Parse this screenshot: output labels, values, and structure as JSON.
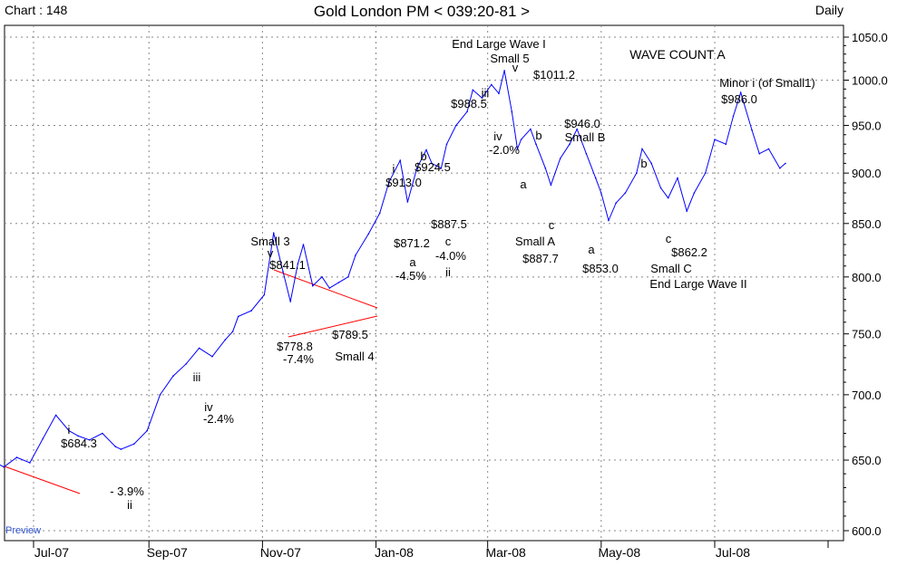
{
  "header": {
    "chart_label": "Chart : 148",
    "title": "Gold London PM < 039:20-81 >",
    "period": "Daily"
  },
  "watermark": "Preview",
  "wave_count_label": "WAVE COUNT A",
  "colors": {
    "price_line": "#0000ff",
    "trend_line": "#ff0000",
    "grid": "#888888",
    "text": "#000000",
    "watermark": "#3355cc"
  },
  "chart_data": {
    "type": "line",
    "title": "Gold London PM < 039:20-81 >",
    "xlabel": "",
    "ylabel": "",
    "ylim": [
      590,
      1060
    ],
    "y_scale": "log",
    "grid": true,
    "x_ticks": [
      "Jul-07",
      "Sep-07",
      "Nov-07",
      "Jan-08",
      "Mar-08",
      "May-08",
      "Jul-08"
    ],
    "y_ticks": [
      "600.0",
      "650.0",
      "700.0",
      "750.0",
      "800.0",
      "850.0",
      "900.0",
      "950.0",
      "1000.0",
      "1050.0"
    ],
    "series": [
      {
        "x": [
          "2007-06-01",
          "2007-06-08",
          "2007-06-15",
          "2007-06-22",
          "2007-06-29",
          "2007-07-06",
          "2007-07-13",
          "2007-07-20",
          "2007-07-25",
          "2007-07-31",
          "2007-08-07",
          "2007-08-14",
          "2007-08-17",
          "2007-08-24",
          "2007-08-31",
          "2007-09-07",
          "2007-09-14",
          "2007-09-21",
          "2007-09-28",
          "2007-10-05",
          "2007-10-12",
          "2007-10-16",
          "2007-10-19",
          "2007-10-26",
          "2007-11-02",
          "2007-11-07",
          "2007-11-12",
          "2007-11-16",
          "2007-11-20",
          "2007-11-23",
          "2007-11-28",
          "2007-12-03",
          "2007-12-07",
          "2007-12-12",
          "2007-12-17",
          "2007-12-21",
          "2007-12-28",
          "2008-01-03",
          "2008-01-08",
          "2008-01-14",
          "2008-01-18",
          "2008-01-23",
          "2008-01-28",
          "2008-01-31",
          "2008-02-05",
          "2008-02-08",
          "2008-02-13",
          "2008-02-19",
          "2008-02-22",
          "2008-02-27",
          "2008-03-03",
          "2008-03-07",
          "2008-03-10",
          "2008-03-14",
          "2008-03-17",
          "2008-03-19",
          "2008-03-24",
          "2008-03-27",
          "2008-04-01",
          "2008-04-04",
          "2008-04-09",
          "2008-04-14",
          "2008-04-18",
          "2008-04-23",
          "2008-04-28",
          "2008-05-01",
          "2008-05-05",
          "2008-05-09",
          "2008-05-14",
          "2008-05-20",
          "2008-05-23",
          "2008-05-28",
          "2008-06-02",
          "2008-06-06",
          "2008-06-11",
          "2008-06-16",
          "2008-06-20",
          "2008-06-26",
          "2008-07-01",
          "2008-07-07",
          "2008-07-11",
          "2008-07-15",
          "2008-07-21",
          "2008-07-25",
          "2008-07-30",
          "2008-08-05",
          "2008-08-08"
        ],
        "values": [
          658,
          650,
          645,
          652,
          648,
          666,
          684,
          672,
          668,
          665,
          670,
          660,
          658,
          662,
          672,
          700,
          715,
          725,
          738,
          731,
          745,
          752,
          765,
          770,
          784,
          841,
          805,
          778,
          812,
          830,
          792,
          800,
          790,
          795,
          800,
          820,
          840,
          860,
          891,
          913,
          871,
          905,
          924,
          910,
          905,
          930,
          950,
          965,
          989,
          980,
          995,
          985,
          1011,
          965,
          925,
          935,
          946,
          930,
          905,
          888,
          915,
          930,
          946,
          920,
          895,
          880,
          853,
          870,
          880,
          900,
          925,
          910,
          885,
          875,
          895,
          862,
          880,
          900,
          935,
          930,
          960,
          986,
          945,
          920,
          925,
          905,
          910
        ]
      }
    ],
    "annotations": [
      "i",
      "$684.3",
      "- 3.9%",
      "ii",
      "iii",
      "iv",
      "-2.4%",
      "Small 3",
      "v",
      "$841.1",
      "$778.8",
      "-7.4%",
      "$789.5",
      "Small 4",
      "i",
      "$913.0",
      "$871.2",
      "a",
      "-4.5%",
      "b",
      "$924.5",
      "$887.5",
      "c",
      "-4.0%",
      "ii",
      "End Large Wave I",
      "Small 5",
      "v",
      "$1011.2",
      "iii",
      "$988.5",
      "iv",
      "-2.0%",
      "a",
      "b",
      "c",
      "Small A",
      "$887.7",
      "$946.0",
      "Small B",
      "a",
      "$853.0",
      "b",
      "c",
      "$862.2",
      "Small C",
      "End Large Wave II",
      "Minor i (of Small1)",
      "$986.0"
    ]
  }
}
